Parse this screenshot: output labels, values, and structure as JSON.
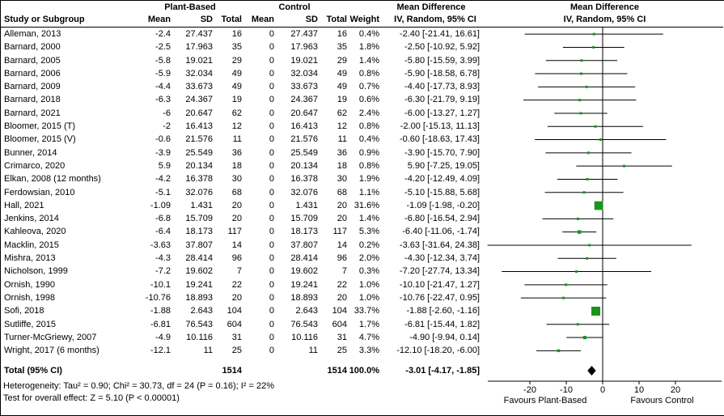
{
  "header": {
    "group1": "Plant-Based",
    "group2": "Control",
    "md_label": "Mean Difference",
    "md_label2": "Mean Difference",
    "col_study": "Study or Subgroup",
    "col_mean1": "Mean",
    "col_sd1": "SD",
    "col_total1": "Total",
    "col_mean2": "Mean",
    "col_sd2": "SD",
    "col_total2": "Total",
    "col_weight": "Weight",
    "ci_label": "IV, Random, 95% CI",
    "ci_label2": "IV, Random, 95% CI"
  },
  "chart_data": {
    "type": "forest",
    "effect_measure": "Mean Difference",
    "model": "IV, Random, 95% CI",
    "colors": {
      "marker": "#18961b",
      "ci_line": "#000000",
      "diamond": "#000000",
      "axis": "#000000"
    },
    "axis": {
      "ticks": [
        -20,
        -10,
        0,
        10,
        20
      ],
      "x_min": -32,
      "x_max": 32,
      "favours_left": "Favours Plant-Based",
      "favours_right": "Favours Control"
    },
    "studies": [
      {
        "name": "Alleman, 2013",
        "mean1": "-2.4",
        "sd1": "27.437",
        "n1": "16",
        "mean2": "0",
        "sd2": "27.437",
        "n2": "16",
        "weight": 0.4,
        "weight_text": "0.4%",
        "md": -2.4,
        "lo": -21.41,
        "hi": 16.61,
        "ci_text": "-2.40 [-21.41, 16.61]"
      },
      {
        "name": "Barnard, 2000",
        "mean1": "-2.5",
        "sd1": "17.963",
        "n1": "35",
        "mean2": "0",
        "sd2": "17.963",
        "n2": "35",
        "weight": 1.8,
        "weight_text": "1.8%",
        "md": -2.5,
        "lo": -10.92,
        "hi": 5.92,
        "ci_text": "-2.50 [-10.92, 5.92]"
      },
      {
        "name": "Barnard, 2005",
        "mean1": "-5.8",
        "sd1": "19.021",
        "n1": "29",
        "mean2": "0",
        "sd2": "19.021",
        "n2": "29",
        "weight": 1.4,
        "weight_text": "1.4%",
        "md": -5.8,
        "lo": -15.59,
        "hi": 3.99,
        "ci_text": "-5.80 [-15.59, 3.99]"
      },
      {
        "name": "Barnard, 2006",
        "mean1": "-5.9",
        "sd1": "32.034",
        "n1": "49",
        "mean2": "0",
        "sd2": "32.034",
        "n2": "49",
        "weight": 0.8,
        "weight_text": "0.8%",
        "md": -5.9,
        "lo": -18.58,
        "hi": 6.78,
        "ci_text": "-5.90 [-18.58, 6.78]"
      },
      {
        "name": "Barnard, 2009",
        "mean1": "-4.4",
        "sd1": "33.673",
        "n1": "49",
        "mean2": "0",
        "sd2": "33.673",
        "n2": "49",
        "weight": 0.7,
        "weight_text": "0.7%",
        "md": -4.4,
        "lo": -17.73,
        "hi": 8.93,
        "ci_text": "-4.40 [-17.73, 8.93]"
      },
      {
        "name": "Barnard, 2018",
        "mean1": "-6.3",
        "sd1": "24.367",
        "n1": "19",
        "mean2": "0",
        "sd2": "24.367",
        "n2": "19",
        "weight": 0.6,
        "weight_text": "0.6%",
        "md": -6.3,
        "lo": -21.79,
        "hi": 9.19,
        "ci_text": "-6.30 [-21.79, 9.19]"
      },
      {
        "name": "Barnard, 2021",
        "mean1": "-6",
        "sd1": "20.647",
        "n1": "62",
        "mean2": "0",
        "sd2": "20.647",
        "n2": "62",
        "weight": 2.4,
        "weight_text": "2.4%",
        "md": -6.0,
        "lo": -13.27,
        "hi": 1.27,
        "ci_text": "-6.00 [-13.27, 1.27]"
      },
      {
        "name": "Bloomer, 2015 (T)",
        "mean1": "-2",
        "sd1": "16.413",
        "n1": "12",
        "mean2": "0",
        "sd2": "16.413",
        "n2": "12",
        "weight": 0.8,
        "weight_text": "0.8%",
        "md": -2.0,
        "lo": -15.13,
        "hi": 11.13,
        "ci_text": "-2.00 [-15.13, 11.13]"
      },
      {
        "name": "Bloomer, 2015 (V)",
        "mean1": "-0.6",
        "sd1": "21.576",
        "n1": "11",
        "mean2": "0",
        "sd2": "21.576",
        "n2": "11",
        "weight": 0.4,
        "weight_text": "0.4%",
        "md": -0.6,
        "lo": -18.63,
        "hi": 17.43,
        "ci_text": "-0.60 [-18.63, 17.43]"
      },
      {
        "name": "Bunner, 2014",
        "mean1": "-3.9",
        "sd1": "25.549",
        "n1": "36",
        "mean2": "0",
        "sd2": "25.549",
        "n2": "36",
        "weight": 0.9,
        "weight_text": "0.9%",
        "md": -3.9,
        "lo": -15.7,
        "hi": 7.9,
        "ci_text": "-3.90 [-15.70, 7.90]"
      },
      {
        "name": "Crimarco, 2020",
        "mean1": "5.9",
        "sd1": "20.134",
        "n1": "18",
        "mean2": "0",
        "sd2": "20.134",
        "n2": "18",
        "weight": 0.8,
        "weight_text": "0.8%",
        "md": 5.9,
        "lo": -7.25,
        "hi": 19.05,
        "ci_text": "5.90 [-7.25, 19.05]"
      },
      {
        "name": "Elkan, 2008 (12 months)",
        "mean1": "-4.2",
        "sd1": "16.378",
        "n1": "30",
        "mean2": "0",
        "sd2": "16.378",
        "n2": "30",
        "weight": 1.9,
        "weight_text": "1.9%",
        "md": -4.2,
        "lo": -12.49,
        "hi": 4.09,
        "ci_text": "-4.20 [-12.49, 4.09]"
      },
      {
        "name": "Ferdowsian, 2010",
        "mean1": "-5.1",
        "sd1": "32.076",
        "n1": "68",
        "mean2": "0",
        "sd2": "32.076",
        "n2": "68",
        "weight": 1.1,
        "weight_text": "1.1%",
        "md": -5.1,
        "lo": -15.88,
        "hi": 5.68,
        "ci_text": "-5.10 [-15.88, 5.68]"
      },
      {
        "name": "Hall, 2021",
        "mean1": "-1.09",
        "sd1": "1.431",
        "n1": "20",
        "mean2": "0",
        "sd2": "1.431",
        "n2": "20",
        "weight": 31.6,
        "weight_text": "31.6%",
        "md": -1.09,
        "lo": -1.98,
        "hi": -0.2,
        "ci_text": "-1.09 [-1.98, -0.20]"
      },
      {
        "name": "Jenkins, 2014",
        "mean1": "-6.8",
        "sd1": "15.709",
        "n1": "20",
        "mean2": "0",
        "sd2": "15.709",
        "n2": "20",
        "weight": 1.4,
        "weight_text": "1.4%",
        "md": -6.8,
        "lo": -16.54,
        "hi": 2.94,
        "ci_text": "-6.80 [-16.54, 2.94]"
      },
      {
        "name": "Kahleova, 2020",
        "mean1": "-6.4",
        "sd1": "18.173",
        "n1": "117",
        "mean2": "0",
        "sd2": "18.173",
        "n2": "117",
        "weight": 5.3,
        "weight_text": "5.3%",
        "md": -6.4,
        "lo": -11.06,
        "hi": -1.74,
        "ci_text": "-6.40 [-11.06, -1.74]"
      },
      {
        "name": "Macklin, 2015",
        "mean1": "-3.63",
        "sd1": "37.807",
        "n1": "14",
        "mean2": "0",
        "sd2": "37.807",
        "n2": "14",
        "weight": 0.2,
        "weight_text": "0.2%",
        "md": -3.63,
        "lo": -31.64,
        "hi": 24.38,
        "ci_text": "-3.63 [-31.64, 24.38]"
      },
      {
        "name": "Mishra, 2013",
        "mean1": "-4.3",
        "sd1": "28.414",
        "n1": "96",
        "mean2": "0",
        "sd2": "28.414",
        "n2": "96",
        "weight": 2.0,
        "weight_text": "2.0%",
        "md": -4.3,
        "lo": -12.34,
        "hi": 3.74,
        "ci_text": "-4.30 [-12.34, 3.74]"
      },
      {
        "name": "Nicholson, 1999",
        "mean1": "-7.2",
        "sd1": "19.602",
        "n1": "7",
        "mean2": "0",
        "sd2": "19.602",
        "n2": "7",
        "weight": 0.3,
        "weight_text": "0.3%",
        "md": -7.2,
        "lo": -27.74,
        "hi": 13.34,
        "ci_text": "-7.20 [-27.74, 13.34]"
      },
      {
        "name": "Ornish, 1990",
        "mean1": "-10.1",
        "sd1": "19.241",
        "n1": "22",
        "mean2": "0",
        "sd2": "19.241",
        "n2": "22",
        "weight": 1.0,
        "weight_text": "1.0%",
        "md": -10.1,
        "lo": -21.47,
        "hi": 1.27,
        "ci_text": "-10.10 [-21.47, 1.27]"
      },
      {
        "name": "Ornish, 1998",
        "mean1": "-10.76",
        "sd1": "18.893",
        "n1": "20",
        "mean2": "0",
        "sd2": "18.893",
        "n2": "20",
        "weight": 1.0,
        "weight_text": "1.0%",
        "md": -10.76,
        "lo": -22.47,
        "hi": 0.95,
        "ci_text": "-10.76 [-22.47, 0.95]"
      },
      {
        "name": "Sofi, 2018",
        "mean1": "-1.88",
        "sd1": "2.643",
        "n1": "104",
        "mean2": "0",
        "sd2": "2.643",
        "n2": "104",
        "weight": 33.7,
        "weight_text": "33.7%",
        "md": -1.88,
        "lo": -2.6,
        "hi": -1.16,
        "ci_text": "-1.88 [-2.60, -1.16]"
      },
      {
        "name": "Sutliffe, 2015",
        "mean1": "-6.81",
        "sd1": "76.543",
        "n1": "604",
        "mean2": "0",
        "sd2": "76.543",
        "n2": "604",
        "weight": 1.7,
        "weight_text": "1.7%",
        "md": -6.81,
        "lo": -15.44,
        "hi": 1.82,
        "ci_text": "-6.81 [-15.44, 1.82]"
      },
      {
        "name": "Turner-McGriewy, 2007",
        "mean1": "-4.9",
        "sd1": "10.116",
        "n1": "31",
        "mean2": "0",
        "sd2": "10.116",
        "n2": "31",
        "weight": 4.7,
        "weight_text": "4.7%",
        "md": -4.9,
        "lo": -9.94,
        "hi": 0.14,
        "ci_text": "-4.90 [-9.94, 0.14]"
      },
      {
        "name": "Wright, 2017 (6 months)",
        "mean1": "-12.1",
        "sd1": "11",
        "n1": "25",
        "mean2": "0",
        "sd2": "11",
        "n2": "25",
        "weight": 3.3,
        "weight_text": "3.3%",
        "md": -12.1,
        "lo": -18.2,
        "hi": -6.0,
        "ci_text": "-12.10 [-18.20, -6.00]"
      }
    ],
    "total": {
      "label": "Total (95% CI)",
      "n1": "1514",
      "n2": "1514",
      "weight_text": "100.0%",
      "md": -3.01,
      "lo": -4.17,
      "hi": -1.85,
      "ci_text": "-3.01 [-4.17, -1.85]"
    },
    "footnotes": [
      "Heterogeneity: Tau² = 0.90; Chi² = 30.73, df = 24 (P = 0.16); I² = 22%",
      "Test for overall effect: Z = 5.10 (P < 0.00001)"
    ]
  }
}
